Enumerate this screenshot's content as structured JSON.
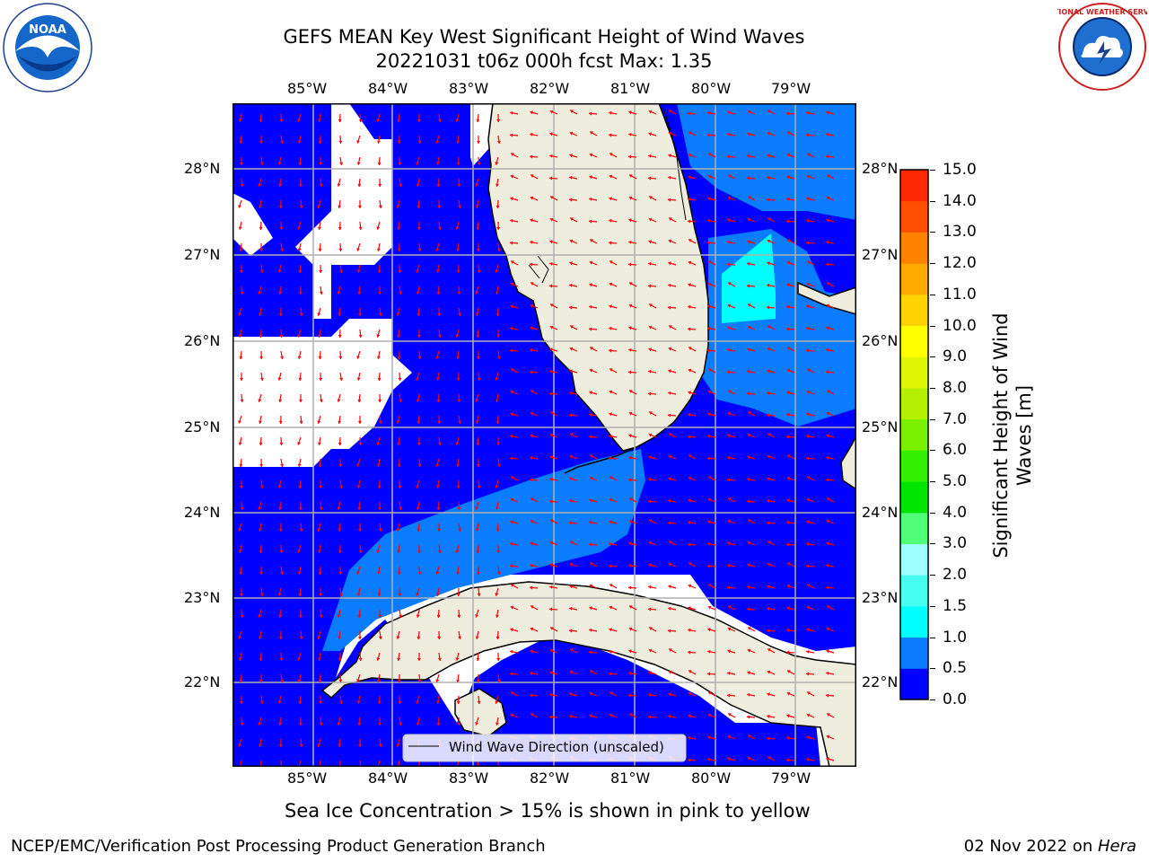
{
  "title_line1": "GEFS MEAN Key West Significant Height of Wind Waves",
  "title_line2": "20221031 t06z 000h fcst   Max: 1.35",
  "lon_labels": [
    "85°W",
    "84°W",
    "83°W",
    "82°W",
    "81°W",
    "80°W",
    "79°W"
  ],
  "lat_labels": [
    "28°N",
    "27°N",
    "26°N",
    "25°N",
    "24°N",
    "23°N",
    "22°N"
  ],
  "legend_label": "Wind Wave Direction (unscaled)",
  "sea_ice_note": "Sea Ice Concentration > 15% is shown in pink to yellow",
  "footer_left": "NCEP/EMC/Verification Post Processing Product Generation Branch",
  "footer_right_date": "02 Nov 2022 on ",
  "footer_right_host": "Hera",
  "colorbar": {
    "title_line1": "Significant Height of Wind",
    "title_line2": "Waves [m]",
    "tick_labels": [
      "0.0",
      "0.5",
      "1.0",
      "1.5",
      "2.0",
      "3.0",
      "4.0",
      "5.0",
      "6.0",
      "7.0",
      "8.0",
      "9.0",
      "10.0",
      "11.0",
      "12.0",
      "13.0",
      "14.0",
      "15.0"
    ],
    "colors": [
      "#0000ff",
      "#0a7dff",
      "#00ffff",
      "#46fff0",
      "#a0ffff",
      "#50ff78",
      "#00e600",
      "#32f000",
      "#78f000",
      "#b4f000",
      "#dcf500",
      "#ffff00",
      "#ffd200",
      "#ffaa00",
      "#ff8200",
      "#ff5000",
      "#ff2800",
      "#ff0000"
    ]
  },
  "logos": {
    "left": "NOAA",
    "right": "NATIONAL WEATHER SERVICE"
  },
  "colors": {
    "sea_low": "#0000ff",
    "sea_mid": "#0a7dff",
    "sea_high": "#00ffff",
    "land": "#efedde",
    "arrow": "#ff0000",
    "grid": "#b0b0b0"
  }
}
